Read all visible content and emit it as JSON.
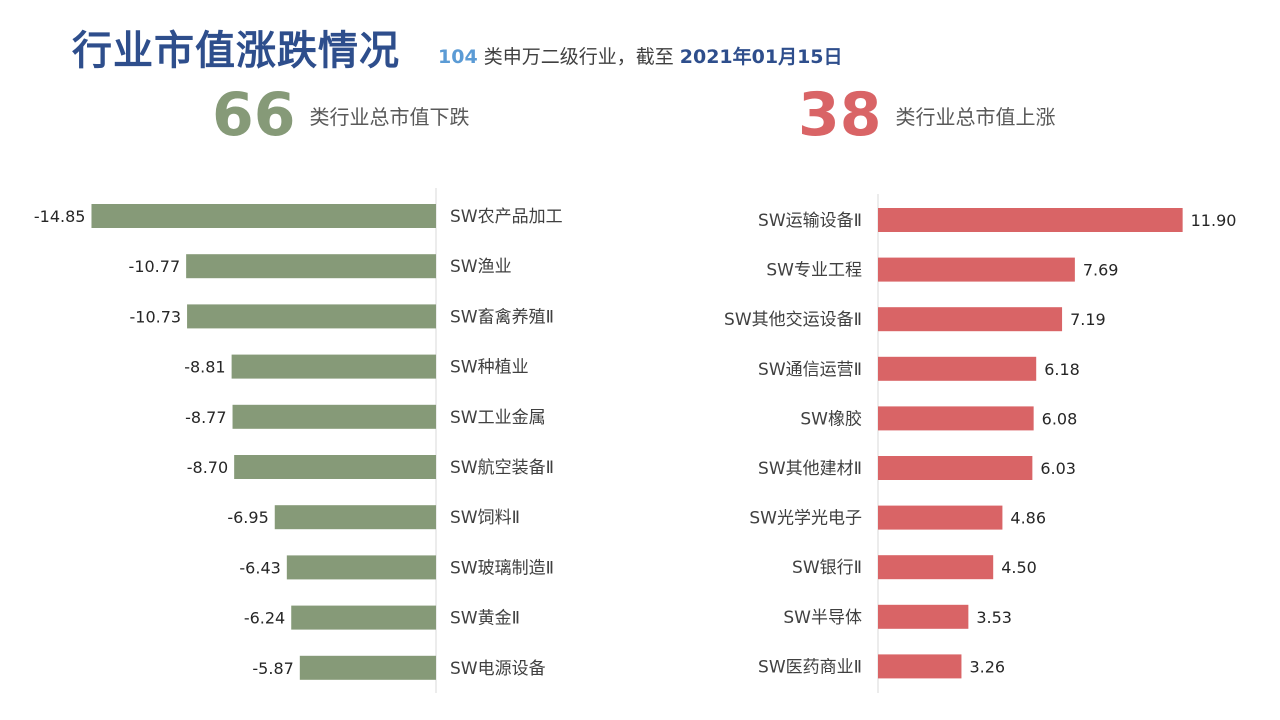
{
  "header": {
    "title": "行业市值涨跌情况",
    "subtitle_count": "104",
    "subtitle_mid": " 类申万二级行业，截至 ",
    "subtitle_date": "2021年01月15日"
  },
  "stats": {
    "down_count": "66",
    "down_label": "类行业总市值下跌",
    "up_count": "38",
    "up_label": "类行业总市值上涨"
  },
  "colors": {
    "down_bar": "#869a78",
    "up_bar": "#d96466",
    "title": "#2e4e8c"
  },
  "chart_data": [
    {
      "type": "bar",
      "orientation": "horizontal",
      "categories": [
        "SW农产品加工",
        "SW渔业",
        "SW畜禽养殖Ⅱ",
        "SW种植业",
        "SW工业金属",
        "SW航空装备Ⅱ",
        "SW饲料Ⅱ",
        "SW玻璃制造Ⅱ",
        "SW黄金Ⅱ",
        "SW电源设备"
      ],
      "values": [
        -14.85,
        -10.77,
        -10.73,
        -8.81,
        -8.77,
        -8.7,
        -6.95,
        -6.43,
        -6.24,
        -5.87
      ],
      "value_labels": [
        "-14.85",
        "-10.77",
        "-10.73",
        "-8.81",
        "-8.77",
        "-8.70",
        "-6.95",
        "-6.43",
        "-6.24",
        "-5.87"
      ],
      "xlim": [
        -15.0,
        0
      ]
    },
    {
      "type": "bar",
      "orientation": "horizontal",
      "categories": [
        "SW运输设备Ⅱ",
        "SW专业工程",
        "SW其他交运设备Ⅱ",
        "SW通信运营Ⅱ",
        "SW橡胶",
        "SW其他建材Ⅱ",
        "SW光学光电子",
        "SW银行Ⅱ",
        "SW半导体",
        "SW医药商业Ⅱ"
      ],
      "values": [
        11.9,
        7.69,
        7.19,
        6.18,
        6.08,
        6.03,
        4.86,
        4.5,
        3.53,
        3.26
      ],
      "value_labels": [
        "11.90",
        "7.69",
        "7.19",
        "6.18",
        "6.08",
        "6.03",
        "4.86",
        "4.50",
        "3.53",
        "3.26"
      ],
      "xlim": [
        0,
        11.9
      ]
    }
  ]
}
